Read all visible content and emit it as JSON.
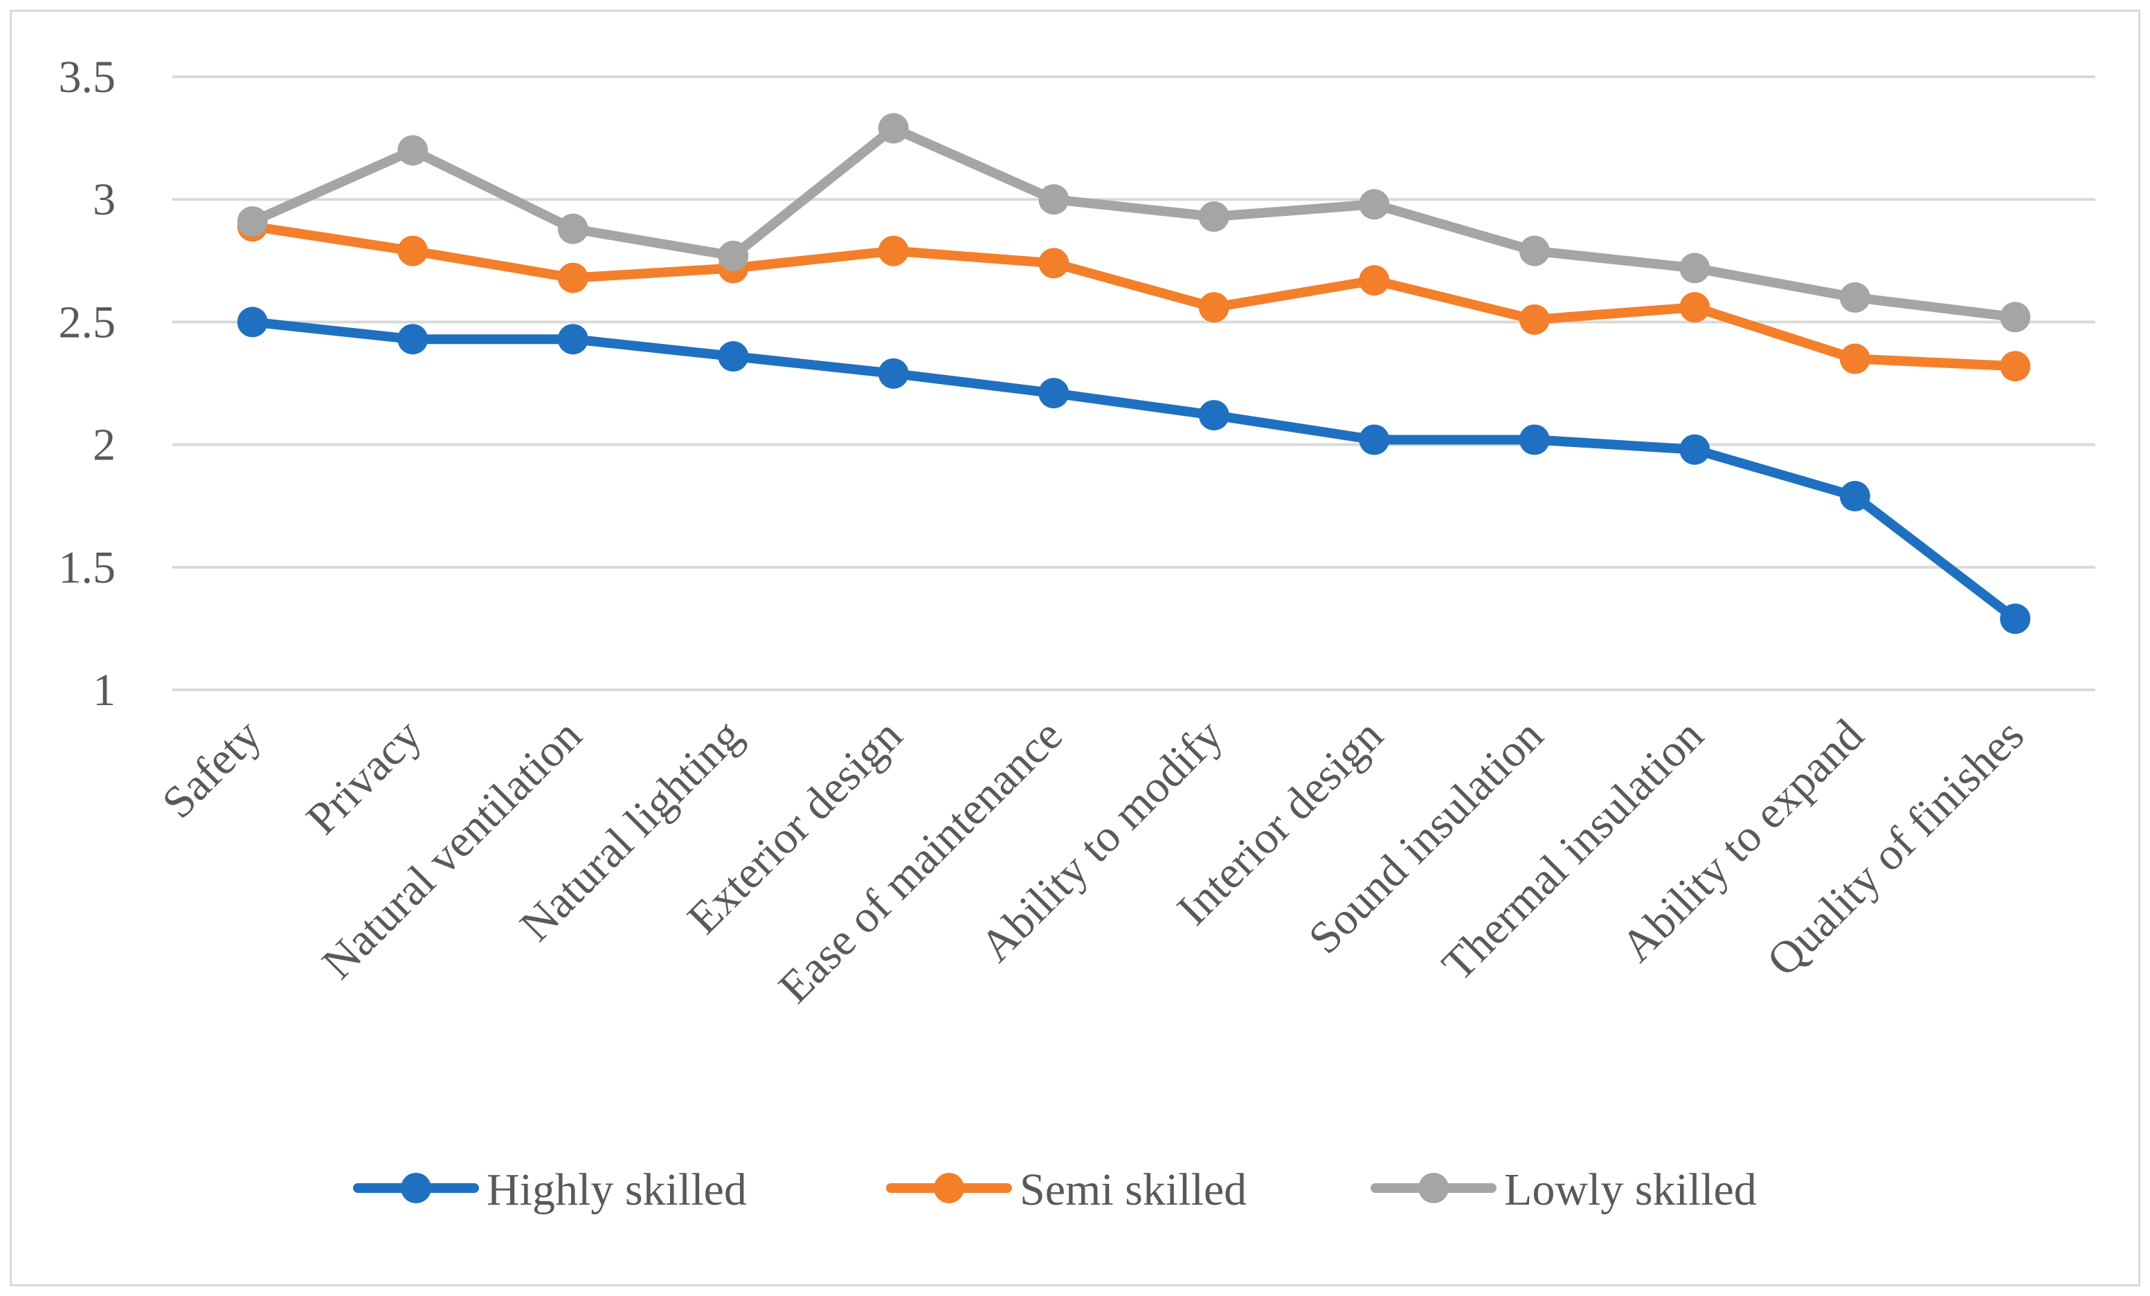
{
  "chart_data": {
    "type": "line",
    "title": "",
    "xlabel": "",
    "ylabel": "",
    "ylim": [
      1,
      3.5
    ],
    "yticks": [
      "1",
      "1.5",
      "2",
      "2.5",
      "3",
      "3.5"
    ],
    "grid": true,
    "legend_position": "bottom",
    "categories": [
      "Safety",
      "Privacy",
      "Natural ventilation",
      "Natural lighting",
      "Exterior design",
      "Ease of maintenance",
      "Ability to modify",
      "Interior design",
      "Sound insulation",
      "Thermal insulation",
      "Ability to expand",
      "Quality of finishes"
    ],
    "series": [
      {
        "name": "Highly skilled",
        "color": "#1f70c1",
        "values": [
          2.5,
          2.43,
          2.43,
          2.36,
          2.29,
          2.21,
          2.12,
          2.02,
          2.02,
          1.98,
          1.79,
          1.29
        ]
      },
      {
        "name": "Semi skilled",
        "color": "#f47f2a",
        "values": [
          2.89,
          2.79,
          2.68,
          2.72,
          2.79,
          2.74,
          2.56,
          2.67,
          2.51,
          2.56,
          2.35,
          2.32
        ]
      },
      {
        "name": "Lowly skilled",
        "color": "#a5a5a5",
        "values": [
          2.91,
          3.2,
          2.88,
          2.77,
          3.29,
          3.0,
          2.93,
          2.98,
          2.79,
          2.72,
          2.6,
          2.52
        ]
      }
    ]
  }
}
